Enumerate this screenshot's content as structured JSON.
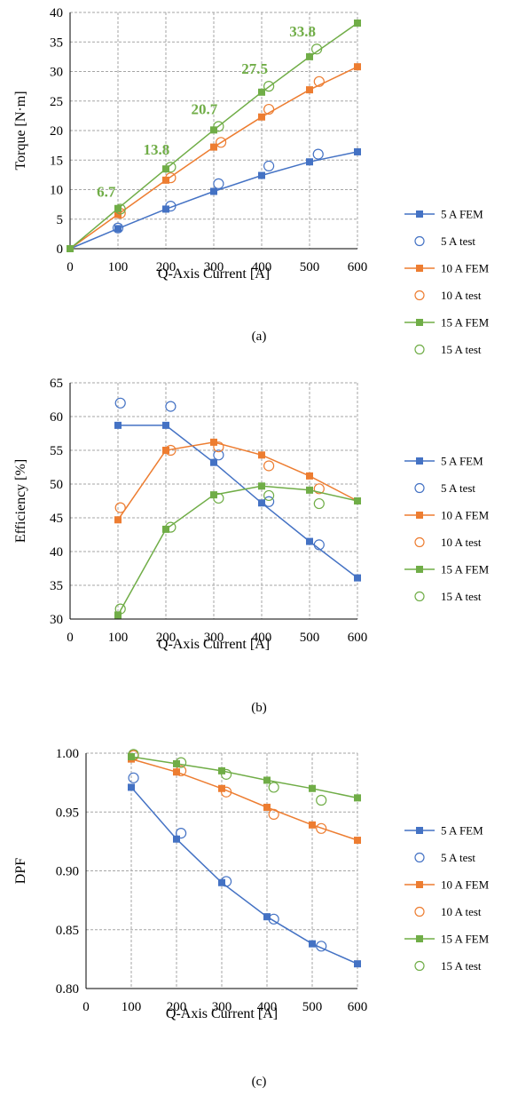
{
  "chart_data": [
    {
      "type": "line",
      "panel_label": "(a)",
      "xlabel": "Q-Axis Current [A]",
      "ylabel": "Torque [N·m]",
      "xlim": [
        0,
        600
      ],
      "ylim": [
        0,
        40
      ],
      "xticks": [
        "0",
        "100",
        "200",
        "300",
        "400",
        "500",
        "600"
      ],
      "yticks": [
        "0",
        "5",
        "10",
        "15",
        "20",
        "25",
        "30",
        "35",
        "40"
      ],
      "grid": true,
      "legend_position": "right",
      "series": [
        {
          "name": "5 A FEM",
          "style": "line-square",
          "color": "#4472C4",
          "x": [
            0,
            100,
            200,
            300,
            400,
            500,
            600
          ],
          "y": [
            0,
            3.4,
            6.7,
            9.7,
            12.4,
            14.7,
            16.4
          ]
        },
        {
          "name": "5 A test",
          "style": "open-circle",
          "color": "#4472C4",
          "x": [
            100,
            210,
            310,
            415,
            518
          ],
          "y": [
            3.5,
            7.2,
            11.0,
            14.0,
            16.0
          ]
        },
        {
          "name": "10 A FEM",
          "style": "line-square",
          "color": "#ED7D31",
          "x": [
            0,
            100,
            200,
            300,
            400,
            500,
            600
          ],
          "y": [
            0,
            5.8,
            11.6,
            17.2,
            22.3,
            26.9,
            30.8
          ]
        },
        {
          "name": "10 A test",
          "style": "open-circle",
          "color": "#ED7D31",
          "x": [
            105,
            210,
            315,
            415,
            520
          ],
          "y": [
            6.0,
            12.0,
            18.0,
            23.6,
            28.3
          ]
        },
        {
          "name": "15 A FEM",
          "style": "line-square",
          "color": "#70AD47",
          "x": [
            0,
            100,
            200,
            300,
            400,
            500,
            600
          ],
          "y": [
            0,
            6.8,
            13.5,
            20.1,
            26.5,
            32.5,
            38.2
          ]
        },
        {
          "name": "15 A test",
          "style": "open-circle",
          "color": "#70AD47",
          "x": [
            105,
            210,
            310,
            415,
            515
          ],
          "y": [
            6.7,
            13.8,
            20.7,
            27.5,
            33.8
          ]
        }
      ],
      "annotations": [
        {
          "text": "6.7",
          "x": 105,
          "y": 6.7
        },
        {
          "text": "13.8",
          "x": 210,
          "y": 13.8
        },
        {
          "text": "20.7",
          "x": 310,
          "y": 20.7
        },
        {
          "text": "27.5",
          "x": 415,
          "y": 27.5
        },
        {
          "text": "33.8",
          "x": 515,
          "y": 33.8
        }
      ]
    },
    {
      "type": "line",
      "panel_label": "(b)",
      "xlabel": "Q-Axis Current [A]",
      "ylabel": "Efficiency [%]",
      "xlim": [
        0,
        600
      ],
      "ylim": [
        30,
        65
      ],
      "xticks": [
        "0",
        "100",
        "200",
        "300",
        "400",
        "500",
        "600"
      ],
      "yticks": [
        "30",
        "35",
        "40",
        "45",
        "50",
        "55",
        "60",
        "65"
      ],
      "grid": true,
      "legend_position": "right",
      "series": [
        {
          "name": "5 A FEM",
          "style": "line-square",
          "color": "#4472C4",
          "x": [
            100,
            200,
            300,
            400,
            500,
            600
          ],
          "y": [
            58.7,
            58.7,
            53.2,
            47.2,
            41.5,
            36.1
          ]
        },
        {
          "name": "5 A test",
          "style": "open-circle",
          "color": "#4472C4",
          "x": [
            105,
            210,
            310,
            415,
            520
          ],
          "y": [
            62.0,
            61.5,
            54.3,
            47.4,
            41.0
          ]
        },
        {
          "name": "10 A FEM",
          "style": "line-square",
          "color": "#ED7D31",
          "x": [
            100,
            200,
            300,
            400,
            500,
            600
          ],
          "y": [
            44.7,
            55.0,
            56.2,
            54.3,
            51.2,
            47.5
          ]
        },
        {
          "name": "10 A test",
          "style": "open-circle",
          "color": "#ED7D31",
          "x": [
            105,
            210,
            310,
            415,
            520
          ],
          "y": [
            46.5,
            55.0,
            55.5,
            52.7,
            49.3
          ]
        },
        {
          "name": "15 A FEM",
          "style": "line-square",
          "color": "#70AD47",
          "x": [
            100,
            200,
            300,
            400,
            500,
            600
          ],
          "y": [
            30.6,
            43.3,
            48.4,
            49.7,
            49.1,
            47.5
          ]
        },
        {
          "name": "15 A test",
          "style": "open-circle",
          "color": "#70AD47",
          "x": [
            105,
            210,
            310,
            415,
            520
          ],
          "y": [
            31.5,
            43.6,
            47.9,
            48.3,
            47.1
          ]
        }
      ]
    },
    {
      "type": "line",
      "panel_label": "(c)",
      "xlabel": "Q-Axis Current [A]",
      "ylabel": "DPF",
      "xlim": [
        0,
        600
      ],
      "ylim": [
        0.8,
        1.0
      ],
      "xticks": [
        "0",
        "100",
        "200",
        "300",
        "400",
        "500",
        "600"
      ],
      "yticks": [
        "0.80",
        "0.85",
        "0.90",
        "0.95",
        "1.00"
      ],
      "grid": true,
      "legend_position": "right",
      "series": [
        {
          "name": "5 A FEM",
          "style": "line-square",
          "color": "#4472C4",
          "x": [
            100,
            200,
            300,
            400,
            500,
            600
          ],
          "y": [
            0.971,
            0.927,
            0.89,
            0.861,
            0.838,
            0.821
          ]
        },
        {
          "name": "5 A test",
          "style": "open-circle",
          "color": "#4472C4",
          "x": [
            105,
            210,
            310,
            415,
            520
          ],
          "y": [
            0.979,
            0.932,
            0.891,
            0.859,
            0.836
          ]
        },
        {
          "name": "10 A FEM",
          "style": "line-square",
          "color": "#ED7D31",
          "x": [
            100,
            200,
            300,
            400,
            500,
            600
          ],
          "y": [
            0.995,
            0.984,
            0.97,
            0.954,
            0.939,
            0.926
          ]
        },
        {
          "name": "10 A test",
          "style": "open-circle",
          "color": "#ED7D31",
          "x": [
            105,
            210,
            310,
            415,
            520
          ],
          "y": [
            0.998,
            0.985,
            0.967,
            0.948,
            0.936
          ]
        },
        {
          "name": "15 A FEM",
          "style": "line-square",
          "color": "#70AD47",
          "x": [
            100,
            200,
            300,
            400,
            500,
            600
          ],
          "y": [
            0.997,
            0.991,
            0.985,
            0.977,
            0.97,
            0.962
          ]
        },
        {
          "name": "15 A test",
          "style": "open-circle",
          "color": "#70AD47",
          "x": [
            105,
            210,
            310,
            415,
            520
          ],
          "y": [
            0.999,
            0.992,
            0.982,
            0.971,
            0.96
          ]
        }
      ]
    }
  ]
}
